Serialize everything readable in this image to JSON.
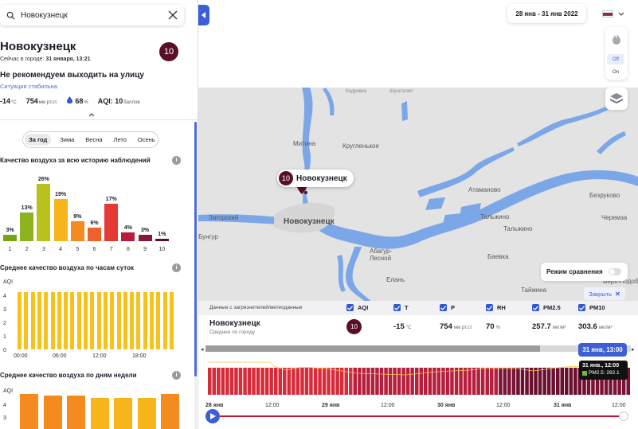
{
  "search": {
    "value": "Новокузнецк"
  },
  "city": {
    "name": "Новокузнецк",
    "now_label": "Сейчас в городе:",
    "now_time": "31 января, 13:21",
    "aqi_badge": "10",
    "advice": "Не рекомендуем выходить на улицу",
    "situation": "Ситуация стабильна",
    "temp": "-14",
    "temp_unit": "°C",
    "pressure": "754",
    "pressure_unit": "мм рт.ст.",
    "humidity": "68",
    "humidity_unit": "%",
    "aqi_text": "AQI: 10",
    "aqi_unit": "баллов"
  },
  "seasons": {
    "tabs": [
      "За год",
      "Зима",
      "Весна",
      "Лето",
      "Осень"
    ],
    "active": 0
  },
  "history": {
    "title": "Качество воздуха за всю историю наблюдений",
    "chart_data": {
      "type": "bar",
      "categories": [
        "1",
        "2",
        "3",
        "4",
        "5",
        "6",
        "7",
        "8",
        "9",
        "10"
      ],
      "values": [
        3,
        13,
        26,
        19,
        9,
        6,
        17,
        4,
        3,
        1
      ],
      "labels": [
        "3%",
        "13%",
        "26%",
        "19%",
        "9%",
        "6%",
        "17%",
        "4%",
        "3%",
        "1%"
      ],
      "colors": [
        "#76a616",
        "#8db31e",
        "#b9c21c",
        "#f5b51b",
        "#f58a1f",
        "#f0602a",
        "#e53935",
        "#b71c3a",
        "#8a1838",
        "#5a0f28"
      ]
    }
  },
  "hourly": {
    "title": "Среднее качество воздуха по часам суток",
    "ylabel": "AQI",
    "yticks": [
      "4",
      "3",
      "2",
      "1",
      "0"
    ],
    "xticks": [
      "00:00",
      "06:00",
      "12:00",
      "18:00"
    ],
    "chart_data": {
      "type": "bar",
      "values": [
        4.5,
        4.5,
        4.5,
        4.5,
        4.5,
        4.5,
        4.5,
        4.5,
        4.5,
        4.5,
        4.5,
        4.5,
        4.5,
        4.5,
        4.5,
        4.5,
        4.5,
        4.5,
        4.5,
        4.5,
        4.5,
        4.5,
        4.5,
        4.5
      ],
      "ylim": [
        0,
        4.6
      ]
    }
  },
  "weekly": {
    "title": "Среднее качество воздуха по дням недели",
    "ylabel": "AQI",
    "yticks": [
      "4",
      "3"
    ],
    "chart_data": {
      "type": "bar",
      "values": [
        5.1,
        5.0,
        5.0,
        4.8,
        4.8,
        4.8,
        5.1
      ],
      "colors": [
        "#f58a1f",
        "#f58a1f",
        "#f58a1f",
        "#f5b51b",
        "#f5b51b",
        "#f5b51b",
        "#f58a1f"
      ]
    }
  },
  "map": {
    "date_range": "28 янв - 31 янв 2022",
    "toggle_off": "Off",
    "toggle_on": "On",
    "marker_city": "Новокузнецк",
    "marker_aqi": "10",
    "compare_label": "Режим сравнения",
    "close_label": "Закрыть",
    "places": [
      "Митина",
      "Кругленькое",
      "Атаманово",
      "Безруково",
      "Черемза",
      "Загорский",
      "Новокузнецк",
      "Бунгур",
      "Тальжино",
      "Тальжино",
      "Абагур-Лесной",
      "Баевка",
      "Елань",
      "Тайжина",
      "Верх-Подобас"
    ],
    "tiny_places": [
      "Кедровка",
      "Шушталеп"
    ]
  },
  "data_panel": {
    "source": "Данные с загрязнителей/метеоданные",
    "metrics": [
      "AQI",
      "T",
      "P",
      "RH",
      "PM2.5",
      "PM10"
    ],
    "city": "Новокузнецк",
    "sub": "Среднее по городу",
    "aqi": "10",
    "t": "-15",
    "t_unit": "°C",
    "p": "754",
    "p_unit": "мм рт.ст.",
    "rh": "70",
    "rh_unit": "%",
    "pm25": "257.7",
    "pm25_unit": "мкг/м³",
    "pm10": "303.6",
    "pm10_unit": "мкг/м³"
  },
  "timeline": {
    "current": "31 янв, 13:00",
    "tooltip_time": "31 янв., 12:00",
    "tooltip_value": "PM2.5: 282.1",
    "ticks": [
      "28 янв",
      "12:00",
      "29 янв",
      "12:00",
      "30 янв",
      "12:00",
      "31 янв",
      "12:00"
    ]
  }
}
